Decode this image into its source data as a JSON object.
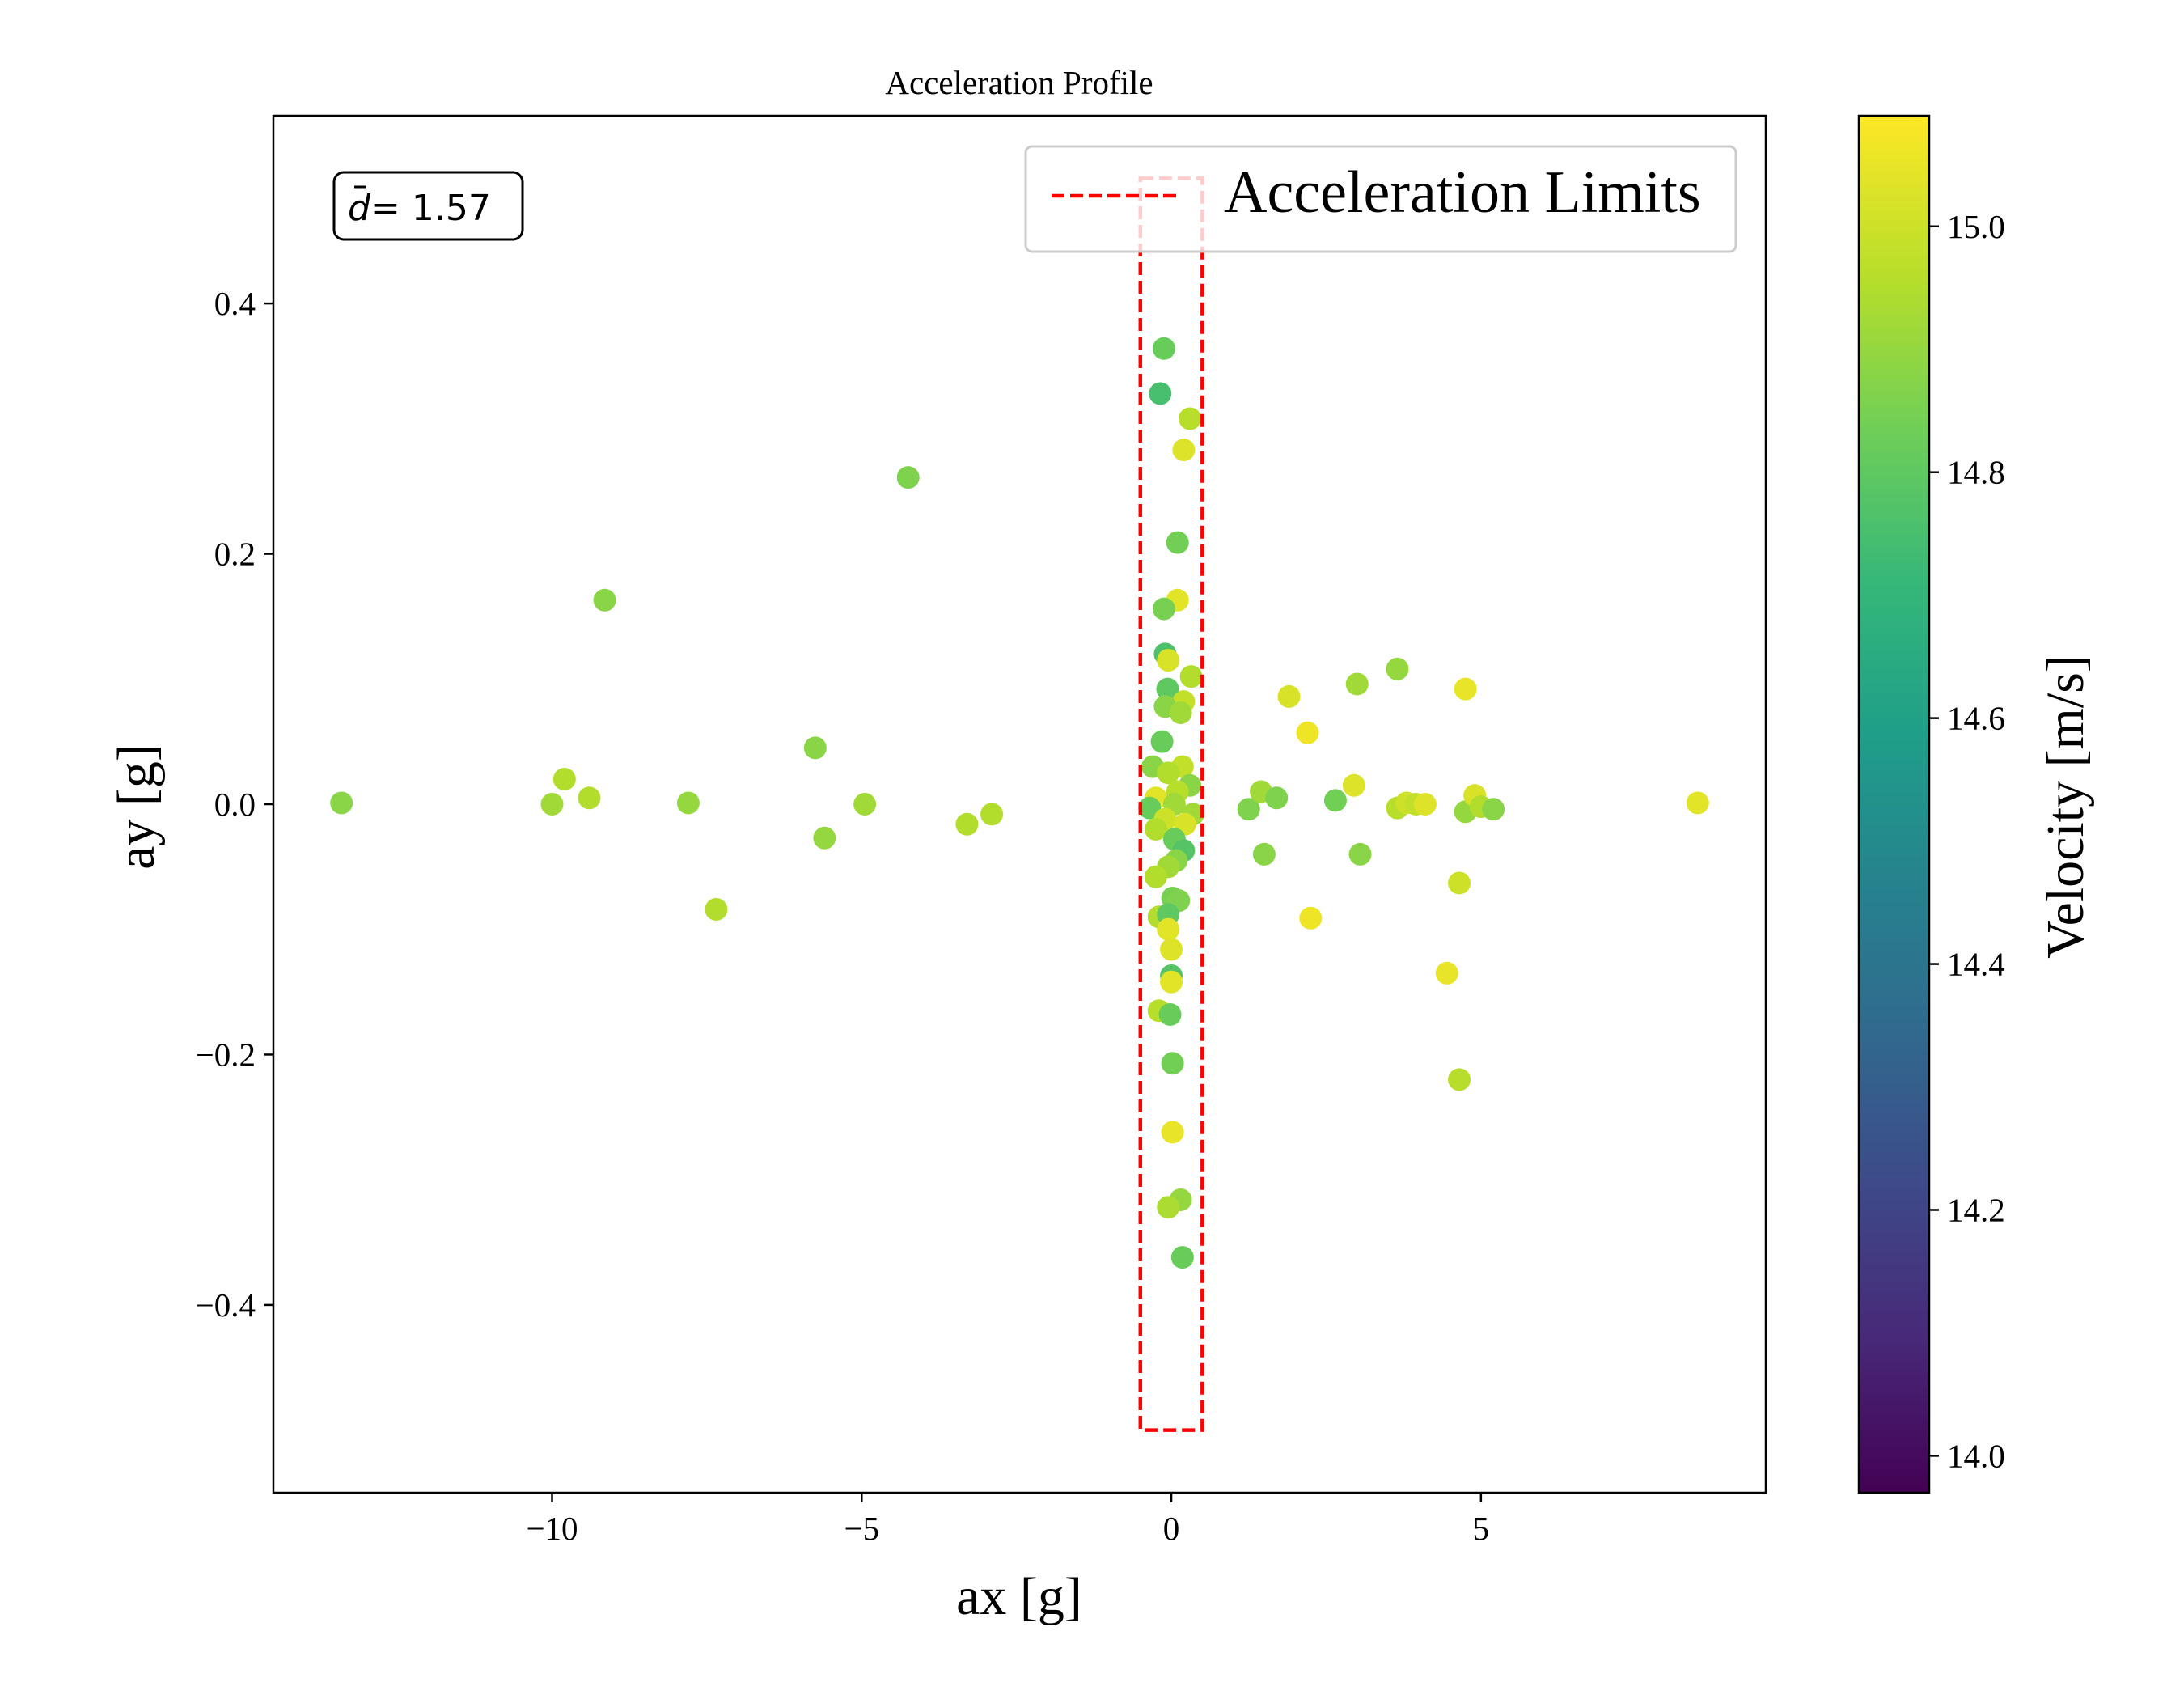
{
  "chart_data": {
    "type": "scatter",
    "title": "Acceleration Profile",
    "xlabel": "ax [g]",
    "ylabel": "ay [g]",
    "xlim": [
      -14.5,
      9.6
    ],
    "ylim": [
      -0.55,
      0.55
    ],
    "x_ticks": [
      -10,
      -5,
      0,
      5
    ],
    "x_tick_labels": [
      "−10",
      "−5",
      "0",
      "5"
    ],
    "y_ticks": [
      -0.4,
      -0.2,
      0.0,
      0.2,
      0.4
    ],
    "y_tick_labels": [
      "−0.4",
      "−0.2",
      "0.0",
      "0.2",
      "0.4"
    ],
    "grid": false,
    "annotation": {
      "d_symbol": "d",
      "text": " = 1.57"
    },
    "legend": {
      "position": "top-right",
      "entries": [
        {
          "label": "Acceleration Limits",
          "color": "#ff0000",
          "style": "dashed"
        }
      ]
    },
    "limit_box": {
      "x": [
        -0.5,
        0.5
      ],
      "y": [
        -0.5,
        0.5
      ],
      "color": "#ff0000"
    },
    "colorbar": {
      "label": "Velocity [m/s]",
      "colormap": "viridis",
      "range": [
        13.97,
        15.09
      ],
      "ticks": [
        14.0,
        14.2,
        14.4,
        14.6,
        14.8,
        15.0
      ],
      "tick_labels": [
        "14.0",
        "14.2",
        "14.4",
        "14.6",
        "14.8",
        "15.0"
      ]
    },
    "points": [
      {
        "x": -13.4,
        "y": 0.001,
        "v": 14.88
      },
      {
        "x": -10.0,
        "y": 0.0,
        "v": 14.92
      },
      {
        "x": -9.8,
        "y": 0.02,
        "v": 14.95
      },
      {
        "x": -9.4,
        "y": 0.005,
        "v": 14.95
      },
      {
        "x": -9.15,
        "y": 0.163,
        "v": 14.88
      },
      {
        "x": -7.8,
        "y": 0.001,
        "v": 14.9
      },
      {
        "x": -7.35,
        "y": -0.084,
        "v": 14.95
      },
      {
        "x": -5.75,
        "y": 0.045,
        "v": 14.88
      },
      {
        "x": -5.6,
        "y": -0.027,
        "v": 14.9
      },
      {
        "x": -4.95,
        "y": 0.0,
        "v": 14.92
      },
      {
        "x": -4.25,
        "y": 0.261,
        "v": 14.86
      },
      {
        "x": -3.3,
        "y": -0.016,
        "v": 14.95
      },
      {
        "x": -2.9,
        "y": -0.008,
        "v": 14.95
      },
      {
        "x": -0.12,
        "y": 0.364,
        "v": 14.82
      },
      {
        "x": -0.18,
        "y": 0.328,
        "v": 14.75
      },
      {
        "x": 0.3,
        "y": 0.308,
        "v": 14.96
      },
      {
        "x": 0.2,
        "y": 0.283,
        "v": 15.03
      },
      {
        "x": 0.1,
        "y": 0.209,
        "v": 14.84
      },
      {
        "x": 0.1,
        "y": 0.163,
        "v": 15.04
      },
      {
        "x": -0.12,
        "y": 0.156,
        "v": 14.85
      },
      {
        "x": -0.1,
        "y": 0.12,
        "v": 14.76
      },
      {
        "x": -0.05,
        "y": 0.115,
        "v": 15.02
      },
      {
        "x": 0.32,
        "y": 0.102,
        "v": 14.95
      },
      {
        "x": -0.06,
        "y": 0.092,
        "v": 14.8
      },
      {
        "x": 0.2,
        "y": 0.082,
        "v": 14.98
      },
      {
        "x": -0.1,
        "y": 0.078,
        "v": 14.88
      },
      {
        "x": 0.15,
        "y": 0.073,
        "v": 14.92
      },
      {
        "x": -0.15,
        "y": 0.05,
        "v": 14.82
      },
      {
        "x": 0.18,
        "y": 0.03,
        "v": 14.98
      },
      {
        "x": -0.3,
        "y": 0.03,
        "v": 14.88
      },
      {
        "x": -0.05,
        "y": 0.025,
        "v": 14.95
      },
      {
        "x": 0.3,
        "y": 0.015,
        "v": 14.88
      },
      {
        "x": 0.1,
        "y": 0.01,
        "v": 14.96
      },
      {
        "x": -0.25,
        "y": 0.005,
        "v": 15.04
      },
      {
        "x": 0.05,
        "y": 0.0,
        "v": 14.92
      },
      {
        "x": -0.35,
        "y": -0.003,
        "v": 14.82
      },
      {
        "x": 0.35,
        "y": -0.008,
        "v": 14.92
      },
      {
        "x": -0.1,
        "y": -0.012,
        "v": 15.0
      },
      {
        "x": 0.22,
        "y": -0.016,
        "v": 15.02
      },
      {
        "x": -0.25,
        "y": -0.02,
        "v": 14.95
      },
      {
        "x": 0.05,
        "y": -0.028,
        "v": 14.82
      },
      {
        "x": 0.2,
        "y": -0.037,
        "v": 14.78
      },
      {
        "x": 0.08,
        "y": -0.045,
        "v": 14.88
      },
      {
        "x": -0.05,
        "y": -0.05,
        "v": 14.92
      },
      {
        "x": -0.25,
        "y": -0.058,
        "v": 14.95
      },
      {
        "x": 0.02,
        "y": -0.075,
        "v": 14.85
      },
      {
        "x": 0.12,
        "y": -0.077,
        "v": 14.86
      },
      {
        "x": -0.2,
        "y": -0.09,
        "v": 14.95
      },
      {
        "x": -0.05,
        "y": -0.088,
        "v": 14.8
      },
      {
        "x": -0.05,
        "y": -0.1,
        "v": 15.04
      },
      {
        "x": 0.0,
        "y": -0.116,
        "v": 15.03
      },
      {
        "x": 0.0,
        "y": -0.137,
        "v": 14.78
      },
      {
        "x": 0.0,
        "y": -0.142,
        "v": 15.04
      },
      {
        "x": -0.2,
        "y": -0.165,
        "v": 14.96
      },
      {
        "x": -0.02,
        "y": -0.168,
        "v": 14.82
      },
      {
        "x": 0.02,
        "y": -0.207,
        "v": 14.84
      },
      {
        "x": 0.02,
        "y": -0.262,
        "v": 15.05
      },
      {
        "x": 0.15,
        "y": -0.316,
        "v": 14.9
      },
      {
        "x": -0.05,
        "y": -0.322,
        "v": 14.94
      },
      {
        "x": 0.18,
        "y": -0.362,
        "v": 14.82
      },
      {
        "x": 1.25,
        "y": -0.004,
        "v": 14.86
      },
      {
        "x": 1.45,
        "y": 0.01,
        "v": 14.92
      },
      {
        "x": 1.5,
        "y": -0.04,
        "v": 14.88
      },
      {
        "x": 1.7,
        "y": 0.005,
        "v": 14.86
      },
      {
        "x": 1.9,
        "y": 0.086,
        "v": 15.02
      },
      {
        "x": 2.2,
        "y": 0.057,
        "v": 15.06
      },
      {
        "x": 2.25,
        "y": -0.091,
        "v": 15.06
      },
      {
        "x": 2.65,
        "y": 0.003,
        "v": 14.84
      },
      {
        "x": 2.95,
        "y": 0.015,
        "v": 15.03
      },
      {
        "x": 3.0,
        "y": 0.096,
        "v": 14.92
      },
      {
        "x": 3.05,
        "y": -0.04,
        "v": 14.88
      },
      {
        "x": 3.65,
        "y": 0.108,
        "v": 14.9
      },
      {
        "x": 3.65,
        "y": -0.003,
        "v": 14.96
      },
      {
        "x": 3.8,
        "y": 0.001,
        "v": 15.0
      },
      {
        "x": 3.95,
        "y": 0.0,
        "v": 14.98
      },
      {
        "x": 4.1,
        "y": 0.0,
        "v": 15.03
      },
      {
        "x": 4.45,
        "y": -0.135,
        "v": 15.05
      },
      {
        "x": 4.65,
        "y": -0.063,
        "v": 15.0
      },
      {
        "x": 4.65,
        "y": -0.22,
        "v": 14.96
      },
      {
        "x": 4.75,
        "y": 0.092,
        "v": 15.05
      },
      {
        "x": 4.75,
        "y": -0.006,
        "v": 14.9
      },
      {
        "x": 4.9,
        "y": 0.007,
        "v": 15.02
      },
      {
        "x": 5.0,
        "y": -0.002,
        "v": 14.95
      },
      {
        "x": 5.2,
        "y": -0.004,
        "v": 14.88
      },
      {
        "x": 8.5,
        "y": 0.001,
        "v": 15.04
      }
    ]
  }
}
